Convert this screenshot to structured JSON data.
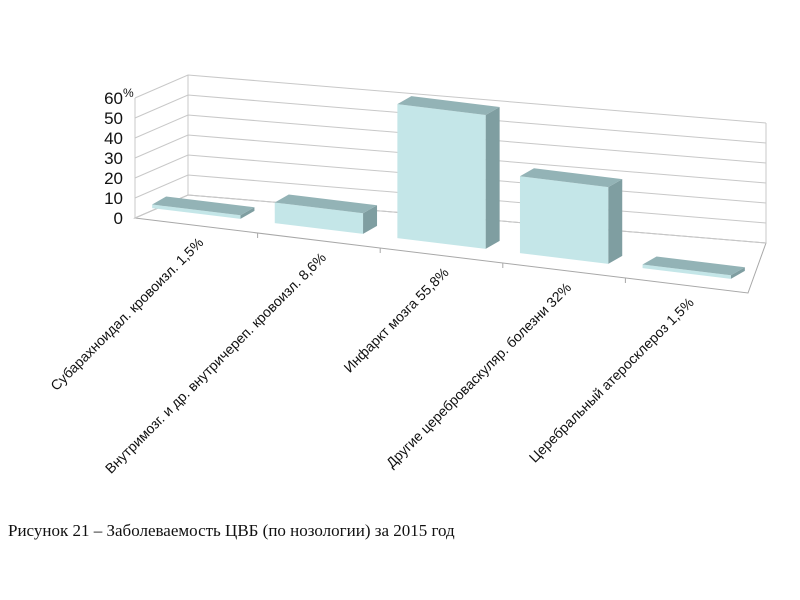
{
  "caption": "Рисунок 21 –  Заболеваемость ЦВБ (по нозологии) за 2015 год",
  "chart_data": {
    "type": "bar",
    "categories": [
      "Субарахноидал. кровоизл. 1,5%",
      "Внутримозг. и др. внутричереп. кровоизл. 8,6%",
      "Инфаркт мозга 55,8%",
      "Другие цереброваскуляр. болезни 32%",
      "Церебральный атеросклероз 1,5%"
    ],
    "values": [
      1.5,
      8.6,
      55.8,
      32,
      1.5
    ],
    "yticks": [
      "0",
      "10",
      "20",
      "30",
      "40",
      "50",
      "60"
    ],
    "yunit": "%",
    "ylim": [
      0,
      60
    ],
    "grid": true,
    "legend": "none",
    "colors": {
      "front": "#c4e6e8",
      "side": "#7f9ea1",
      "top": "#93b3b6",
      "grid": "#c8c8c8",
      "floor": "#a8a8a8"
    }
  }
}
